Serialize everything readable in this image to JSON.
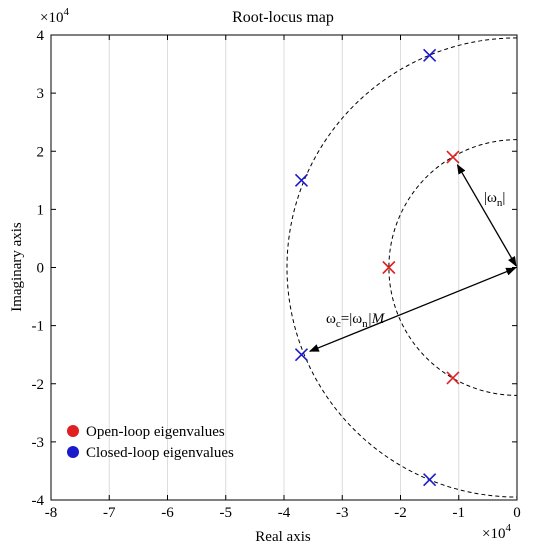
{
  "chart_data": {
    "type": "scatter",
    "title": "Root-locus map",
    "xlabel": "Real axis",
    "ylabel": "Imaginary axis",
    "x_multiplier": "×10^4",
    "y_multiplier": "×10^4",
    "x_multiplier_base": "×10",
    "x_multiplier_exp": "4",
    "y_multiplier_base": "×10",
    "y_multiplier_exp": "4",
    "xlim": [
      -80000,
      0
    ],
    "ylim": [
      -40000,
      40000
    ],
    "xticks": [
      -80000,
      -70000,
      -60000,
      -50000,
      -40000,
      -30000,
      -20000,
      -10000,
      0
    ],
    "xtick_labels": [
      "-8",
      "-7",
      "-6",
      "-5",
      "-4",
      "-3",
      "-2",
      "-1",
      "0"
    ],
    "yticks": [
      -40000,
      -30000,
      -20000,
      -10000,
      0,
      10000,
      20000,
      30000,
      40000
    ],
    "ytick_labels": [
      "-4",
      "-3",
      "-2",
      "-1",
      "0",
      "1",
      "2",
      "3",
      "4"
    ],
    "grid": "vertical",
    "legend_position": "bottom-left",
    "series": [
      {
        "name": "Open-loop eigenvalues",
        "color": "#e02020",
        "marker": "x",
        "points": [
          {
            "x": -22000,
            "y": 0
          },
          {
            "x": -11000,
            "y": 19000
          },
          {
            "x": -11000,
            "y": -19000
          }
        ]
      },
      {
        "name": "Closed-loop eigenvalues",
        "color": "#1a1acc",
        "marker": "x",
        "points": [
          {
            "x": -15000,
            "y": 36500
          },
          {
            "x": -37000,
            "y": 15000
          },
          {
            "x": -37000,
            "y": -15000
          },
          {
            "x": -15000,
            "y": -36500
          }
        ]
      }
    ],
    "circles": [
      {
        "radius": 22000,
        "style": "dashed"
      },
      {
        "radius": 39500,
        "style": "dashed"
      }
    ],
    "annotations": [
      {
        "text_main": "|ω",
        "text_sub": "n",
        "text_tail": "|",
        "arrow_from": [
          0,
          0
        ],
        "arrow_to": [
          -11000,
          19000
        ]
      },
      {
        "text_main": "ω",
        "text_sub": "c",
        "text_mid": "=|ω",
        "text_sub2": "n",
        "text_tail": "|M",
        "arrow_from": [
          0,
          0
        ],
        "arrow_to": [
          -37000,
          -15000
        ]
      }
    ]
  }
}
